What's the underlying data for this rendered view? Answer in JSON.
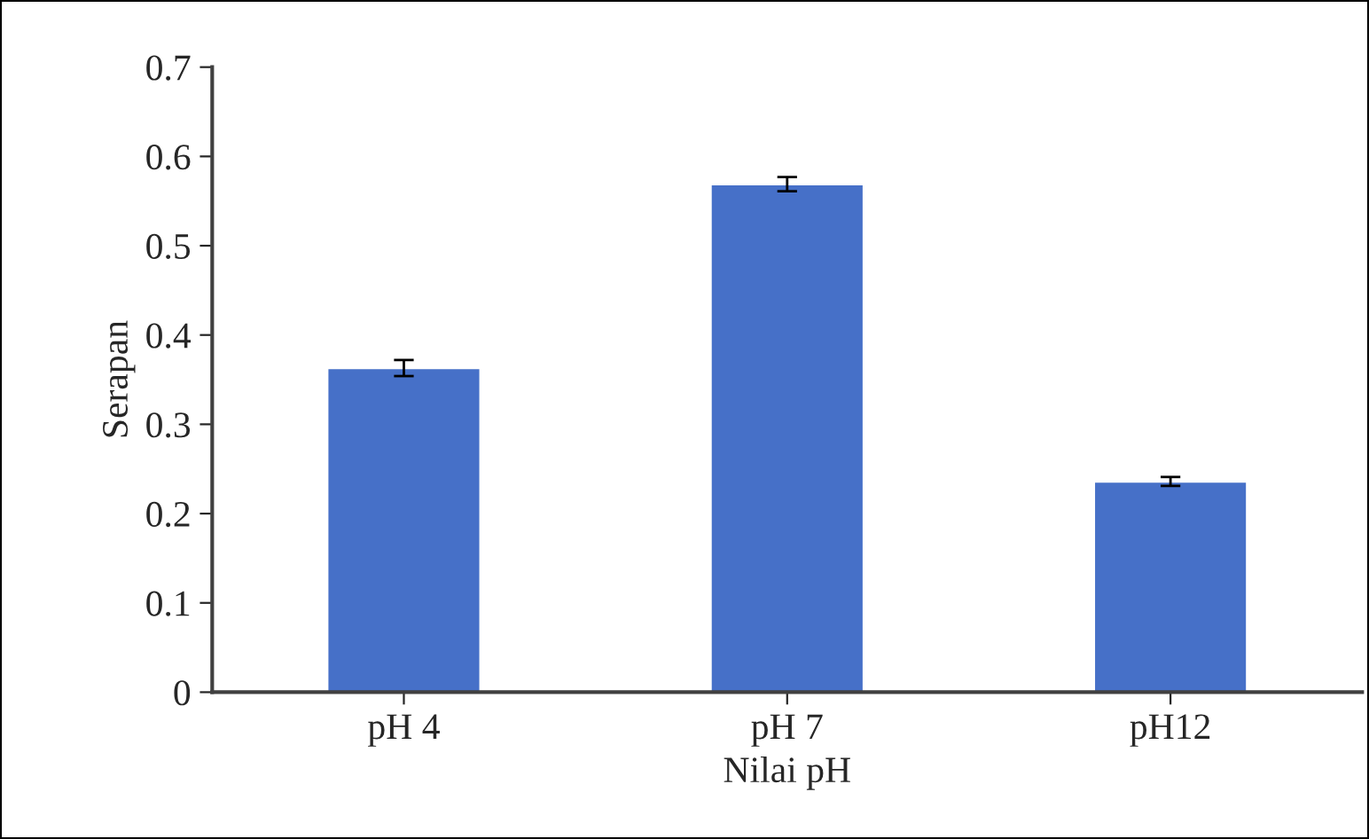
{
  "chart_data": {
    "type": "bar",
    "xlabel": "Nilai pH",
    "ylabel": "Serapan",
    "categories": [
      "pH 4",
      "pH 7",
      "pH12"
    ],
    "values": [
      0.363,
      0.569,
      0.236
    ],
    "errors": [
      0.009,
      0.008,
      0.005
    ],
    "color": "#4670c8",
    "ylim": [
      0,
      0.7
    ],
    "yticks": [
      0,
      0.1,
      0.2,
      0.3,
      0.4,
      0.5,
      0.6,
      0.7
    ],
    "grid": false,
    "legend": false
  }
}
